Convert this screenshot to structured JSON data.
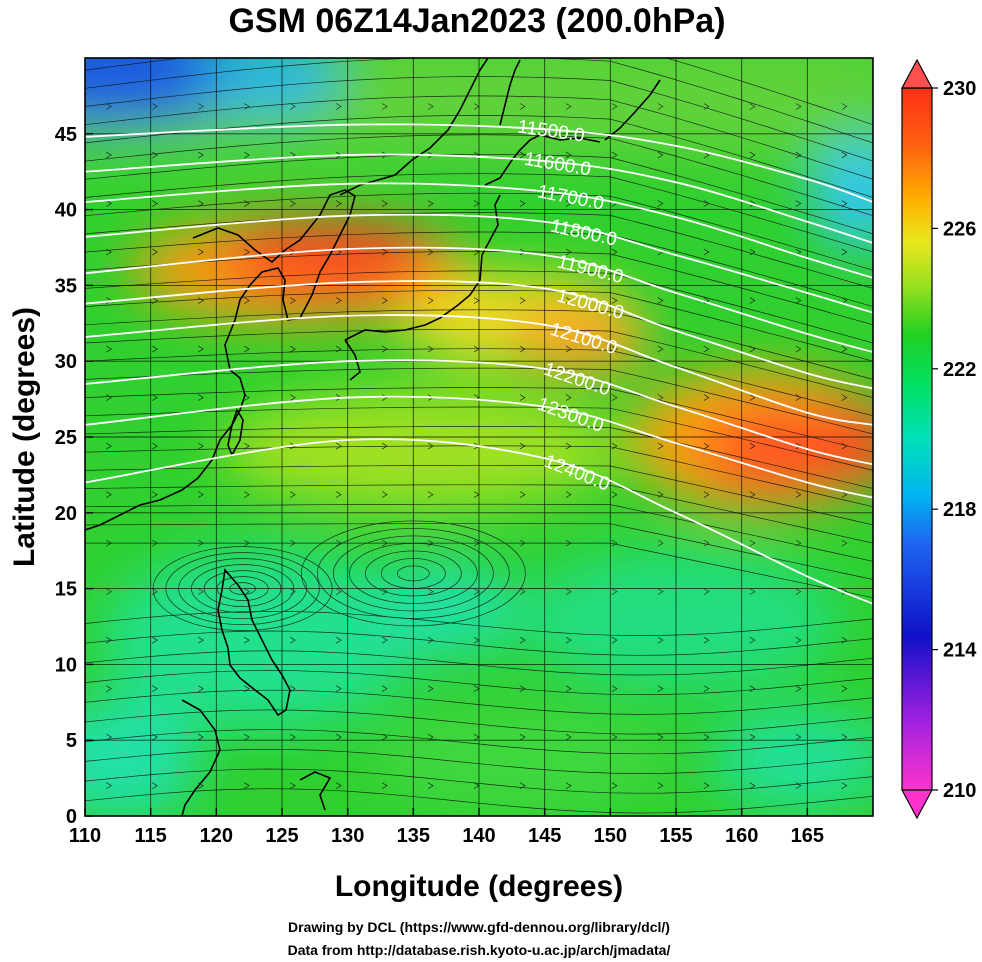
{
  "chart_data": {
    "type": "heatmap",
    "title": "GSM 06Z14Jan2023 (200.0hPa)",
    "xlabel": "Longitude (degrees)",
    "ylabel": "Latitude  (degrees)",
    "xlim": [
      110,
      170
    ],
    "ylim": [
      0,
      50
    ],
    "xticks": [
      110,
      115,
      120,
      125,
      130,
      135,
      140,
      145,
      150,
      155,
      160,
      165
    ],
    "yticks": [
      0,
      5,
      10,
      15,
      20,
      25,
      30,
      35,
      40,
      45
    ],
    "grid": true,
    "colorbar": {
      "placement": "right",
      "range": [
        210,
        230
      ],
      "ticks": [
        210,
        214,
        218,
        222,
        226,
        230
      ],
      "colors": [
        "#ff33cc",
        "#1010c8",
        "#1e64f0",
        "#00d2f0",
        "#00e090",
        "#22d022",
        "#90e020",
        "#e8e81c",
        "#ff9a00",
        "#ff3a18",
        "#ff5050"
      ]
    },
    "contours": [
      {
        "label": "11500.0",
        "lat": [
          44.8,
          45.6,
          45.3,
          44.2,
          42.0,
          40.5
        ],
        "lon": [
          110,
          130,
          145,
          155,
          165,
          170
        ]
      },
      {
        "label": "11600.0",
        "lat": [
          42.5,
          43.6,
          43.2,
          41.8,
          39.2,
          37.8
        ],
        "lon": [
          110,
          130,
          145,
          155,
          165,
          170
        ]
      },
      {
        "label": "11700.0",
        "lat": [
          40.5,
          41.7,
          41.2,
          39.5,
          36.8,
          35.5
        ],
        "lon": [
          110,
          130,
          145,
          155,
          165,
          170
        ]
      },
      {
        "label": "11800.0",
        "lat": [
          38.2,
          39.6,
          39.2,
          37.0,
          34.5,
          33.2
        ],
        "lon": [
          110,
          130,
          145,
          155,
          165,
          170
        ]
      },
      {
        "label": "11900.0",
        "lat": [
          35.8,
          37.4,
          37.0,
          34.5,
          31.8,
          30.6
        ],
        "lon": [
          110,
          130,
          145,
          155,
          165,
          170
        ]
      },
      {
        "label": "12000.0",
        "lat": [
          33.8,
          35.2,
          34.8,
          32.0,
          29.2,
          28.2
        ],
        "lon": [
          110,
          130,
          145,
          155,
          165,
          170
        ]
      },
      {
        "label": "12100.0",
        "lat": [
          31.6,
          33.0,
          32.4,
          29.6,
          26.6,
          25.8
        ],
        "lon": [
          110,
          130,
          145,
          155,
          165,
          170
        ]
      },
      {
        "label": "12200.0",
        "lat": [
          28.5,
          30.0,
          29.5,
          27.0,
          24.2,
          23.2
        ],
        "lon": [
          110,
          130,
          145,
          155,
          165,
          170
        ]
      },
      {
        "label": "12300.0",
        "lat": [
          25.8,
          27.6,
          27.0,
          24.6,
          22.0,
          21.0
        ],
        "lon": [
          110,
          130,
          145,
          155,
          165,
          170
        ]
      },
      {
        "label": "12400.0",
        "lat": [
          22.0,
          24.8,
          23.6,
          20.0,
          15.8,
          14.0
        ],
        "lon": [
          110,
          130,
          145,
          155,
          165,
          170
        ]
      }
    ]
  },
  "credits": {
    "line1": "Drawing by DCL (https://www.gfd-dennou.org/library/dcl/)",
    "line2": "Data from http://database.rish.kyoto-u.ac.jp/arch/jmadata/"
  }
}
